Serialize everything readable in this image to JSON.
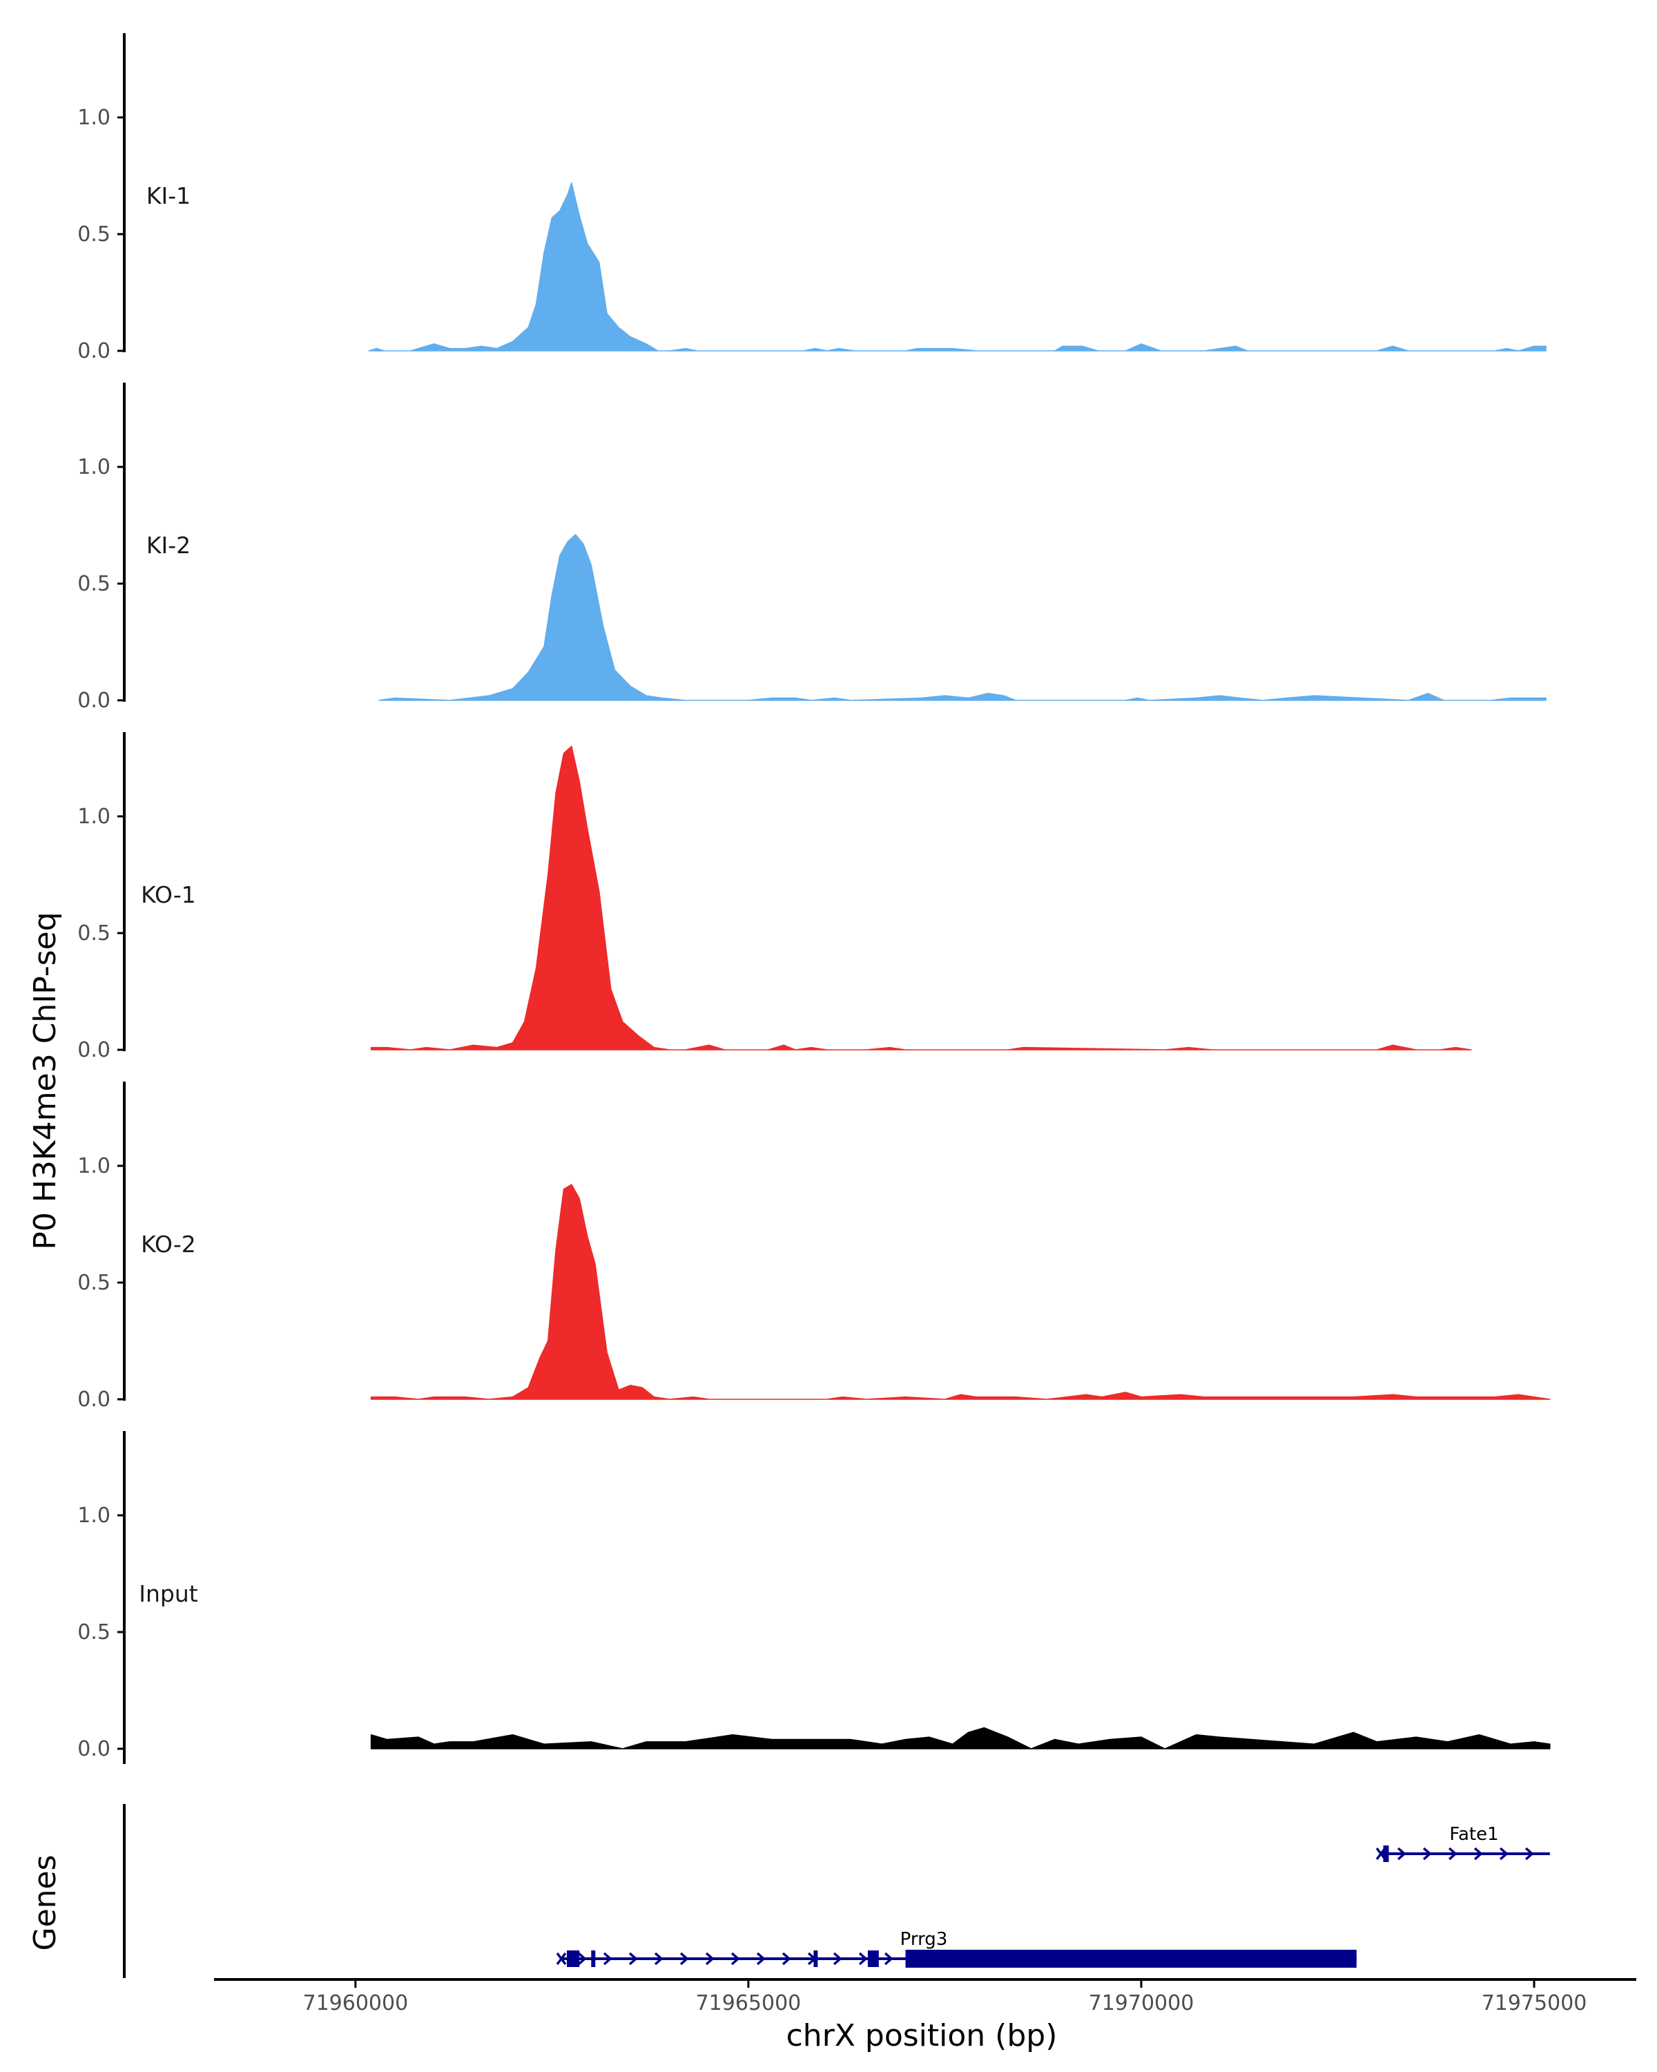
{
  "chart_data": {
    "type": "area",
    "title": "",
    "ylabel": "P0 H3K4me3 ChIP-seq",
    "xlabel": "chrX position (bp)",
    "genes_label": "Genes",
    "xlim": [
      71958200,
      71976300
    ],
    "ylim": [
      0,
      1.4
    ],
    "x_ticks": [
      71960000,
      71965000,
      71970000,
      71975000
    ],
    "x_tick_labels": [
      "71960000",
      "71965000",
      "71970000",
      "71975000"
    ],
    "y_ticks": [
      0,
      0.5,
      1.0
    ],
    "y_tick_labels": [
      "0.0",
      "0.5",
      "1.0"
    ],
    "grid": false,
    "colors": {
      "KI": "#60aeed",
      "KO": "#ee2a2a",
      "Input": "#000000",
      "gene": "#00008b"
    },
    "series": [
      {
        "name": "KI-1",
        "color": "#60aeed",
        "x": [
          71960170,
          71960270,
          71960370,
          71960700,
          71960800,
          71961000,
          71961200,
          71961400,
          71961600,
          71961800,
          71962000,
          71962200,
          71962300,
          71962400,
          71962500,
          71962600,
          71962700,
          71962750,
          71962850,
          71962950,
          71963100,
          71963200,
          71963350,
          71963500,
          71963700,
          71963850,
          71964000,
          71964200,
          71964350,
          71965700,
          71965850,
          71966000,
          71966150,
          71966350,
          71967000,
          71967150,
          71967350,
          71967600,
          71967900,
          71968900,
          71969000,
          71969250,
          71969450,
          71969800,
          71970000,
          71970250,
          71970800,
          71971000,
          71971200,
          71971350,
          71973000,
          71973200,
          71973400,
          71974500,
          71974650,
          71974800,
          71974900,
          71975000,
          71975150
        ],
        "y": [
          0,
          0.01,
          0,
          0,
          0.01,
          0.03,
          0.01,
          0.01,
          0.02,
          0.01,
          0.04,
          0.1,
          0.2,
          0.42,
          0.57,
          0.6,
          0.67,
          0.72,
          0.58,
          0.46,
          0.38,
          0.16,
          0.1,
          0.06,
          0.03,
          0,
          0,
          0.01,
          0,
          0,
          0.01,
          0,
          0.01,
          0,
          0,
          0.01,
          0.01,
          0.01,
          0,
          0,
          0.02,
          0.02,
          0,
          0,
          0.03,
          0,
          0,
          0.01,
          0.02,
          0,
          0,
          0.02,
          0,
          0,
          0.01,
          0,
          0.01,
          0.02,
          0.02
        ]
      },
      {
        "name": "KI-2",
        "color": "#60aeed",
        "x": [
          71960300,
          71960500,
          71961200,
          71961700,
          71962000,
          71962200,
          71962400,
          71962500,
          71962600,
          71962700,
          71962800,
          71962900,
          71963000,
          71963150,
          71963300,
          71963500,
          71963700,
          71963900,
          71964200,
          71965000,
          71965300,
          71965600,
          71965800,
          71966100,
          71966300,
          71967200,
          71967500,
          71967800,
          71968050,
          71968250,
          71968400,
          71969800,
          71969950,
          71970100,
          71970700,
          71971000,
          71971250,
          71971550,
          71971850,
          71972200,
          71973400,
          71973650,
          71973850,
          71974450,
          71974700,
          71974900,
          71975150
        ],
        "y": [
          0,
          0.01,
          0,
          0.02,
          0.05,
          0.12,
          0.23,
          0.45,
          0.62,
          0.68,
          0.71,
          0.67,
          0.58,
          0.32,
          0.13,
          0.06,
          0.02,
          0.01,
          0,
          0,
          0.01,
          0.01,
          0,
          0.01,
          0,
          0.01,
          0.02,
          0.01,
          0.03,
          0.02,
          0,
          0,
          0.01,
          0,
          0.01,
          0.02,
          0.01,
          0,
          0.01,
          0.02,
          0,
          0.03,
          0,
          0,
          0.01,
          0.01,
          0.01
        ]
      },
      {
        "name": "KO-1",
        "color": "#ee2a2a",
        "x": [
          71960200,
          71960400,
          71960700,
          71960900,
          71961200,
          71961500,
          71961800,
          71962000,
          71962150,
          71962300,
          71962450,
          71962550,
          71962650,
          71962750,
          71962850,
          71962950,
          71963100,
          71963250,
          71963400,
          71963600,
          71963800,
          71964000,
          71964200,
          71964500,
          71964700,
          71965250,
          71965450,
          71965600,
          71965800,
          71966000,
          71966500,
          71966800,
          71967000,
          71968300,
          71968500,
          71970300,
          71970600,
          71970900,
          71973000,
          71973200,
          71973500,
          71973800,
          71974000,
          71974200
        ],
        "y": [
          0.01,
          0.01,
          0,
          0.01,
          0,
          0.02,
          0.01,
          0.03,
          0.12,
          0.35,
          0.75,
          1.1,
          1.27,
          1.3,
          1.15,
          0.95,
          0.68,
          0.26,
          0.12,
          0.06,
          0.01,
          0,
          0,
          0.02,
          0,
          0,
          0.02,
          0,
          0.01,
          0,
          0,
          0.01,
          0,
          0,
          0.01,
          0,
          0.01,
          0,
          0,
          0.02,
          0,
          0,
          0.01,
          0
        ]
      },
      {
        "name": "KO-2",
        "color": "#ee2a2a",
        "x": [
          71960200,
          71960500,
          71960800,
          71961000,
          71961200,
          71961400,
          71961700,
          71962000,
          71962200,
          71962350,
          71962450,
          71962550,
          71962650,
          71962750,
          71962850,
          71962950,
          71963050,
          71963200,
          71963350,
          71963500,
          71963650,
          71963800,
          71964000,
          71964300,
          71964500,
          71966000,
          71966200,
          71966500,
          71967000,
          71967500,
          71967700,
          71967900,
          71968400,
          71968800,
          71969300,
          71969500,
          71969800,
          71970000,
          71970500,
          71970800,
          71971300,
          71971900,
          71972400,
          71972700,
          71973200,
          71973500,
          71974000,
          71974500,
          71974800,
          71975200
        ],
        "y": [
          0.01,
          0.01,
          0,
          0.01,
          0.01,
          0.01,
          0,
          0.01,
          0.05,
          0.18,
          0.25,
          0.64,
          0.9,
          0.92,
          0.86,
          0.7,
          0.58,
          0.2,
          0.04,
          0.06,
          0.05,
          0.01,
          0,
          0.01,
          0,
          0,
          0.01,
          0,
          0.01,
          0,
          0.02,
          0.01,
          0.01,
          0,
          0.02,
          0.01,
          0.03,
          0.01,
          0.02,
          0.01,
          0.01,
          0.01,
          0.01,
          0.01,
          0.02,
          0.01,
          0.01,
          0.01,
          0.02,
          0
        ]
      },
      {
        "name": "Input",
        "color": "#000000",
        "x": [
          71960200,
          71960400,
          71960800,
          71961000,
          71961200,
          71961500,
          71962000,
          71962400,
          71963000,
          71963400,
          71963700,
          71964200,
          71964800,
          71965300,
          71965800,
          71966300,
          71966700,
          71967000,
          71967300,
          71967600,
          71967800,
          71968000,
          71968300,
          71968600,
          71968900,
          71969200,
          71969600,
          71970000,
          71970300,
          71970700,
          71971000,
          71971400,
          71971800,
          71972200,
          71972400,
          71972700,
          71973000,
          71973500,
          71973900,
          71974300,
          71974700,
          71975000,
          71975200
        ],
        "y": [
          0.06,
          0.04,
          0.05,
          0.02,
          0.03,
          0.03,
          0.06,
          0.02,
          0.03,
          0,
          0.03,
          0.03,
          0.06,
          0.04,
          0.04,
          0.04,
          0.02,
          0.04,
          0.05,
          0.02,
          0.07,
          0.09,
          0.05,
          0,
          0.04,
          0.02,
          0.04,
          0.05,
          0,
          0.06,
          0.05,
          0.04,
          0.03,
          0.02,
          0.04,
          0.07,
          0.03,
          0.05,
          0.03,
          0.06,
          0.02,
          0.03,
          0.02
        ]
      }
    ],
    "genes": [
      {
        "name": "Fate1",
        "strand": "+",
        "start": 71973050,
        "end": 71975200,
        "exons": [
          [
            71973080,
            71973150
          ]
        ]
      },
      {
        "name": "Prrg3",
        "strand": "+",
        "start": 71962620,
        "end": 71972740,
        "exons": [
          [
            71962690,
            71962850
          ],
          [
            71963000,
            71963040
          ],
          [
            71965830,
            71965860
          ],
          [
            71966520,
            71966660
          ],
          [
            71967000,
            71972740
          ]
        ]
      }
    ]
  }
}
